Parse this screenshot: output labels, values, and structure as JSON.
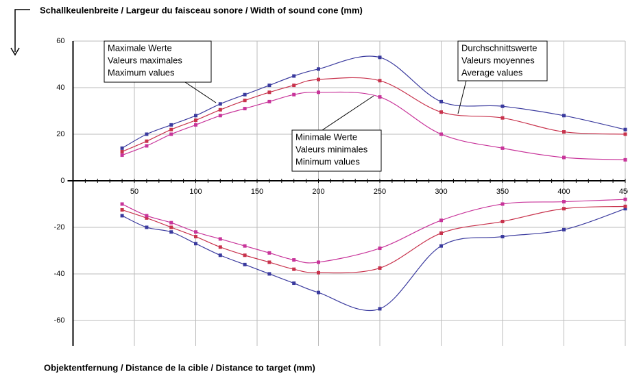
{
  "chart_data": {
    "type": "line",
    "title": "Schallkeulenbreite / Largeur du faisceau sonore / Width of sound cone (mm)",
    "x_label": "Objektentfernung / Distance de la cible / Distance to target (mm)",
    "x": [
      40,
      60,
      80,
      100,
      120,
      140,
      160,
      180,
      200,
      250,
      300,
      350,
      400,
      450
    ],
    "series": [
      {
        "color": "#3a3a9e",
        "values": [
          14,
          20,
          24,
          28,
          33,
          37,
          41,
          45,
          48,
          53,
          34,
          32,
          28,
          22
        ]
      },
      {
        "color": "#c8324c",
        "values": [
          12.5,
          17,
          22,
          26,
          30.5,
          34.5,
          38,
          41,
          43.5,
          43,
          29.5,
          27,
          21,
          20
        ]
      },
      {
        "color": "#c8349a",
        "values": [
          11,
          15,
          20,
          24,
          28,
          31,
          34,
          37,
          38,
          36,
          20,
          14,
          10,
          9
        ]
      },
      {
        "color": "#3a3a9e",
        "values": [
          -15,
          -20,
          -22,
          -27,
          -32,
          -36,
          -40,
          -44,
          -48,
          -55,
          -28,
          -24,
          -21,
          -12
        ]
      },
      {
        "color": "#c8324c",
        "values": [
          -12.5,
          -16,
          -20,
          -24,
          -28.5,
          -32,
          -35,
          -38,
          -39.5,
          -37.5,
          -22.5,
          -17.5,
          -12,
          -11
        ]
      },
      {
        "color": "#c8349a",
        "values": [
          -10,
          -15,
          -18,
          -22,
          -25,
          -28,
          -31,
          -34,
          -35,
          -29,
          -17,
          -10,
          -9,
          -8
        ]
      }
    ],
    "xlim": [
      0,
      450
    ],
    "xticks": [
      50,
      100,
      150,
      200,
      250,
      300,
      350,
      400,
      450
    ],
    "ylim": [
      -70.9,
      60
    ],
    "yticks": [
      -60,
      -40,
      -20,
      0,
      20,
      40,
      60
    ],
    "grid": true,
    "annotations": [
      {
        "lines": [
          "Maximale Werte",
          "Valeurs maximales",
          "Maximum values"
        ]
      },
      {
        "lines": [
          "Durchschnittswerte",
          "Valeurs moyennes",
          "Average values"
        ]
      },
      {
        "lines": [
          "Minimale Werte",
          "Valeurs minimales",
          "Minimum values"
        ]
      }
    ]
  }
}
